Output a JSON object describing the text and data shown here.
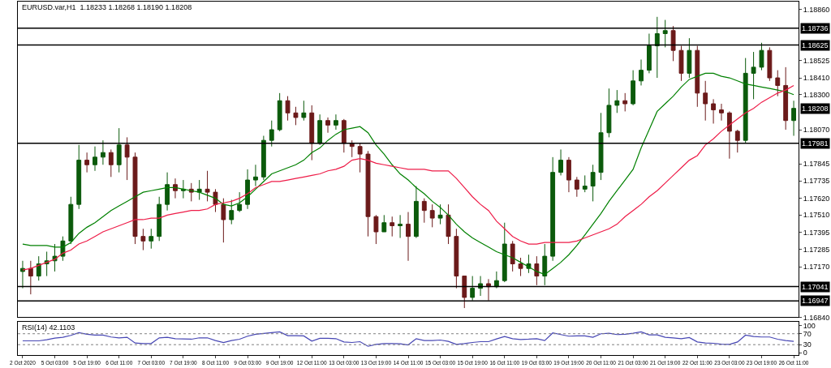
{
  "chart_data": [
    {
      "type": "candlestick",
      "title": "EURUSD.var,H1  1.18233 1.18268 1.18190 1.18208",
      "categories": [
        null,
        null,
        null,
        null,
        null,
        null,
        null,
        null,
        null,
        null,
        null,
        null,
        null,
        null,
        null,
        null,
        null,
        null,
        null,
        null,
        null,
        null,
        null,
        null,
        null,
        null,
        null,
        null,
        null,
        null,
        null,
        null,
        null,
        null,
        null,
        null,
        null,
        null,
        null,
        null,
        null,
        null,
        null,
        null,
        null,
        null,
        null,
        null,
        null,
        null,
        null,
        null,
        null,
        null,
        null,
        null,
        null,
        null,
        null,
        null,
        null,
        null,
        null,
        null,
        null,
        null,
        null,
        null,
        null,
        null,
        null,
        null,
        null,
        null,
        null,
        null,
        null,
        null,
        null,
        null,
        null,
        null,
        null,
        null,
        null,
        null,
        null,
        null,
        null,
        null,
        null,
        null,
        null,
        null,
        null,
        null,
        null
      ],
      "ohlc": [
        [
          1.1714,
          1.1721,
          1.1703,
          1.1716
        ],
        [
          1.1716,
          1.1721,
          1.1699,
          1.1711
        ],
        [
          1.1711,
          1.1724,
          1.1708,
          1.1719
        ],
        [
          1.1719,
          1.1727,
          1.1711,
          1.1721
        ],
        [
          1.1721,
          1.1732,
          1.1714,
          1.1724
        ],
        [
          1.1724,
          1.1737,
          1.1721,
          1.1734
        ],
        [
          1.1734,
          1.1763,
          1.1732,
          1.1758
        ],
        [
          1.1758,
          1.1797,
          1.1755,
          1.1787
        ],
        [
          1.1787,
          1.1792,
          1.1779,
          1.1784
        ],
        [
          1.1784,
          1.1796,
          1.178,
          1.1789
        ],
        [
          1.1789,
          1.18,
          1.1784,
          1.1792
        ],
        [
          1.1792,
          1.1794,
          1.1776,
          1.1784
        ],
        [
          1.1784,
          1.1808,
          1.1779,
          1.1797
        ],
        [
          1.1797,
          1.1802,
          1.1774,
          1.1789
        ],
        [
          1.1789,
          1.1792,
          1.1732,
          1.1737
        ],
        [
          1.1737,
          1.1742,
          1.1728,
          1.1734
        ],
        [
          1.1734,
          1.1742,
          1.1729,
          1.1737
        ],
        [
          1.1737,
          1.1763,
          1.1734,
          1.1758
        ],
        [
          1.1758,
          1.1779,
          1.1754,
          1.1771
        ],
        [
          1.1771,
          1.1775,
          1.1762,
          1.1767
        ],
        [
          1.1767,
          1.1774,
          1.1762,
          1.1768
        ],
        [
          1.1768,
          1.1772,
          1.176,
          1.1766
        ],
        [
          1.1766,
          1.1774,
          1.1761,
          1.1768
        ],
        [
          1.1768,
          1.178,
          1.176,
          1.1766
        ],
        [
          1.1766,
          1.1768,
          1.1753,
          1.1758
        ],
        [
          1.1758,
          1.1762,
          1.1733,
          1.1748
        ],
        [
          1.1748,
          1.1761,
          1.1745,
          1.1754
        ],
        [
          1.1754,
          1.1766,
          1.1753,
          1.1758
        ],
        [
          1.1758,
          1.1781,
          1.1755,
          1.1774
        ],
        [
          1.1774,
          1.1784,
          1.177,
          1.1776
        ],
        [
          1.1776,
          1.1803,
          1.1774,
          1.18
        ],
        [
          1.18,
          1.1813,
          1.1796,
          1.1807
        ],
        [
          1.1807,
          1.1831,
          1.1806,
          1.1826
        ],
        [
          1.1826,
          1.1829,
          1.1813,
          1.1818
        ],
        [
          1.1818,
          1.1822,
          1.181,
          1.1815
        ],
        [
          1.1815,
          1.1826,
          1.1813,
          1.1818
        ],
        [
          1.1818,
          1.1823,
          1.1787,
          1.1798
        ],
        [
          1.1798,
          1.1817,
          1.1797,
          1.1813
        ],
        [
          1.1813,
          1.1815,
          1.1805,
          1.181
        ],
        [
          1.181,
          1.1817,
          1.1807,
          1.1813
        ],
        [
          1.1813,
          1.1814,
          1.1792,
          1.1798
        ],
        [
          1.1798,
          1.18,
          1.1789,
          1.1796
        ],
        [
          1.1796,
          1.1798,
          1.1779,
          1.1791
        ],
        [
          1.1791,
          1.1793,
          1.1737,
          1.175
        ],
        [
          1.175,
          1.1751,
          1.1732,
          1.174
        ],
        [
          1.174,
          1.1751,
          1.174,
          1.1746
        ],
        [
          1.1746,
          1.175,
          1.1737,
          1.1744
        ],
        [
          1.1744,
          1.1751,
          1.1736,
          1.1745
        ],
        [
          1.1745,
          1.1753,
          1.1721,
          1.1737
        ],
        [
          1.1737,
          1.177,
          1.1736,
          1.176
        ],
        [
          1.176,
          1.1762,
          1.1746,
          1.1754
        ],
        [
          1.1754,
          1.1758,
          1.1743,
          1.1749
        ],
        [
          1.1749,
          1.1758,
          1.1745,
          1.1751
        ],
        [
          1.1751,
          1.1758,
          1.1732,
          1.1737
        ],
        [
          1.1737,
          1.1742,
          1.1703,
          1.1711
        ],
        [
          1.1711,
          1.1711,
          1.169,
          1.1697
        ],
        [
          1.1697,
          1.1711,
          1.1695,
          1.1703
        ],
        [
          1.1703,
          1.1711,
          1.1698,
          1.1706
        ],
        [
          1.1706,
          1.1709,
          1.1695,
          1.1704
        ],
        [
          1.1704,
          1.1714,
          1.1703,
          1.1708
        ],
        [
          1.1708,
          1.1746,
          1.1707,
          1.1732
        ],
        [
          1.1732,
          1.1734,
          1.1714,
          1.1719
        ],
        [
          1.1719,
          1.1723,
          1.1711,
          1.1716
        ],
        [
          1.1716,
          1.1725,
          1.1713,
          1.1719
        ],
        [
          1.1719,
          1.1724,
          1.1705,
          1.1711
        ],
        [
          1.1711,
          1.1732,
          1.1705,
          1.1724
        ],
        [
          1.1724,
          1.1789,
          1.1721,
          1.1779
        ],
        [
          1.1779,
          1.1794,
          1.1777,
          1.1787
        ],
        [
          1.1787,
          1.1789,
          1.1766,
          1.1774
        ],
        [
          1.1774,
          1.1776,
          1.1763,
          1.1768
        ],
        [
          1.1768,
          1.1777,
          1.1766,
          1.177
        ],
        [
          1.177,
          1.1784,
          1.176,
          1.1779
        ],
        [
          1.1779,
          1.1818,
          1.1774,
          1.1805
        ],
        [
          1.1805,
          1.1834,
          1.1802,
          1.1823
        ],
        [
          1.1823,
          1.1833,
          1.1818,
          1.1826
        ],
        [
          1.1826,
          1.1831,
          1.1819,
          1.1824
        ],
        [
          1.1824,
          1.1846,
          1.1823,
          1.1839
        ],
        [
          1.1839,
          1.1853,
          1.1836,
          1.1846
        ],
        [
          1.1846,
          1.187,
          1.1844,
          1.1862
        ],
        [
          1.1862,
          1.1881,
          1.1841,
          1.187
        ],
        [
          1.187,
          1.1879,
          1.1861,
          1.1872
        ],
        [
          1.1872,
          1.1875,
          1.1852,
          1.1859
        ],
        [
          1.1859,
          1.1862,
          1.1839,
          1.1844
        ],
        [
          1.1844,
          1.1867,
          1.1841,
          1.1859
        ],
        [
          1.1859,
          1.1862,
          1.1822,
          1.1831
        ],
        [
          1.1831,
          1.1839,
          1.1813,
          1.1824
        ],
        [
          1.1824,
          1.1827,
          1.1811,
          1.182
        ],
        [
          1.182,
          1.1824,
          1.1813,
          1.1818
        ],
        [
          1.1818,
          1.1819,
          1.1788,
          1.1806
        ],
        [
          1.1806,
          1.1807,
          1.1792,
          1.18
        ],
        [
          1.18,
          1.1854,
          1.1798,
          1.1844
        ],
        [
          1.1844,
          1.1858,
          1.1827,
          1.1848
        ],
        [
          1.1848,
          1.1864,
          1.1846,
          1.1859
        ],
        [
          1.1859,
          1.1861,
          1.1839,
          1.1841
        ],
        [
          1.1841,
          1.1846,
          1.1829,
          1.1836
        ],
        [
          1.1836,
          1.1848,
          1.1807,
          1.1813
        ],
        [
          1.1813,
          1.1826,
          1.1803,
          1.1821
        ]
      ],
      "colors": [
        "#0b5a0b",
        "#6b1a1a",
        "#0b5a0b",
        "#0b5a0b",
        "#0b5a0b",
        "#0b5a0b",
        "#0b5a0b",
        "#0b5a0b",
        "#6b1a1a",
        "#0b5a0b",
        "#0b5a0b",
        "#6b1a1a",
        "#0b5a0b",
        "#6b1a1a",
        "#6b1a1a",
        "#6b1a1a",
        "#0b5a0b",
        "#0b5a0b",
        "#0b5a0b",
        "#6b1a1a",
        "#0b5a0b",
        "#6b1a1a",
        "#0b5a0b",
        "#6b1a1a",
        "#6b1a1a",
        "#6b1a1a",
        "#0b5a0b",
        "#0b5a0b",
        "#0b5a0b",
        "#0b5a0b",
        "#0b5a0b",
        "#0b5a0b",
        "#0b5a0b",
        "#6b1a1a",
        "#6b1a1a",
        "#0b5a0b",
        "#6b1a1a",
        "#0b5a0b",
        "#6b1a1a",
        "#0b5a0b",
        "#6b1a1a",
        "#6b1a1a",
        "#6b1a1a",
        "#6b1a1a",
        "#6b1a1a",
        "#0b5a0b",
        "#6b1a1a",
        "#0b5a0b",
        "#6b1a1a",
        "#0b5a0b",
        "#6b1a1a",
        "#6b1a1a",
        "#0b5a0b",
        "#6b1a1a",
        "#6b1a1a",
        "#6b1a1a",
        "#0b5a0b",
        "#0b5a0b",
        "#6b1a1a",
        "#0b5a0b",
        "#0b5a0b",
        "#6b1a1a",
        "#6b1a1a",
        "#0b5a0b",
        "#6b1a1a",
        "#0b5a0b",
        "#0b5a0b",
        "#0b5a0b",
        "#6b1a1a",
        "#6b1a1a",
        "#0b5a0b",
        "#0b5a0b",
        "#0b5a0b",
        "#0b5a0b",
        "#0b5a0b",
        "#6b1a1a",
        "#0b5a0b",
        "#0b5a0b",
        "#0b5a0b",
        "#0b5a0b",
        "#0b5a0b",
        "#6b1a1a",
        "#6b1a1a",
        "#0b5a0b",
        "#6b1a1a",
        "#6b1a1a",
        "#6b1a1a",
        "#6b1a1a",
        "#6b1a1a",
        "#6b1a1a",
        "#0b5a0b",
        "#0b5a0b",
        "#0b5a0b",
        "#6b1a1a",
        "#6b1a1a",
        "#6b1a1a",
        "#0b5a0b"
      ],
      "series": [
        {
          "type": "line",
          "color": "#008000",
          "values": [
            1.1732,
            1.1731,
            1.1731,
            1.1731,
            1.173,
            1.173,
            1.1733,
            1.1739,
            1.1743,
            1.1746,
            1.175,
            1.1754,
            1.1757,
            1.176,
            1.1763,
            1.1766,
            1.1767,
            1.1768,
            1.1769,
            1.1769,
            1.1768,
            1.1767,
            1.1766,
            1.1764,
            1.1762,
            1.1758,
            1.1757,
            1.1759,
            1.1763,
            1.1768,
            1.1773,
            1.1778,
            1.178,
            1.1782,
            1.1784,
            1.1787,
            1.1792,
            1.1795,
            1.18,
            1.1804,
            1.1807,
            1.1808,
            1.1809,
            1.1805,
            1.1797,
            1.1791,
            1.1784,
            1.1778,
            1.1774,
            1.1769,
            1.1765,
            1.176,
            1.1756,
            1.1751,
            1.1745,
            1.174,
            1.1736,
            1.1733,
            1.173,
            1.1727,
            1.1725,
            1.1723,
            1.172,
            1.1717,
            1.1714,
            1.1712,
            1.1716,
            1.172,
            1.1725,
            1.1731,
            1.1738,
            1.1745,
            1.1752,
            1.176,
            1.1767,
            1.1774,
            1.1781,
            1.1795,
            1.1807,
            1.1819,
            1.1824,
            1.1829,
            1.1835,
            1.184,
            1.1842,
            1.1844,
            1.1844,
            1.1842,
            1.1841,
            1.1839,
            1.1837,
            1.1836,
            1.1835,
            1.1834,
            1.1833,
            1.1832,
            1.183
          ]
        },
        {
          "type": "line",
          "color": "#ee1c48",
          "values": [
            1.1715,
            1.1716,
            1.1718,
            1.172,
            1.1722,
            1.1726,
            1.1728,
            1.1732,
            1.1734,
            1.1737,
            1.174,
            1.1742,
            1.1744,
            1.1746,
            1.1748,
            1.1748,
            1.1749,
            1.1749,
            1.1751,
            1.1752,
            1.1753,
            1.1754,
            1.1754,
            1.1755,
            1.1758,
            1.1759,
            1.176,
            1.1762,
            1.1765,
            1.1769,
            1.1771,
            1.1773,
            1.1773,
            1.1774,
            1.1775,
            1.1776,
            1.1777,
            1.1778,
            1.178,
            1.1781,
            1.1783,
            1.1787,
            1.1788,
            1.1787,
            1.1785,
            1.1784,
            1.1783,
            1.1782,
            1.1781,
            1.1781,
            1.1781,
            1.178,
            1.178,
            1.178,
            1.1775,
            1.1769,
            1.1763,
            1.1758,
            1.1754,
            1.1747,
            1.1742,
            1.1737,
            1.1734,
            1.1732,
            1.1732,
            1.1733,
            1.1733,
            1.1733,
            1.1733,
            1.1734,
            1.1736,
            1.1738,
            1.174,
            1.1742,
            1.1745,
            1.175,
            1.1754,
            1.1758,
            1.1763,
            1.1767,
            1.1772,
            1.1777,
            1.1782,
            1.1787,
            1.179,
            1.1797,
            1.1801,
            1.1806,
            1.181,
            1.1814,
            1.1818,
            1.1821,
            1.1825,
            1.1828,
            1.1831,
            1.1833,
            1.1836
          ]
        }
      ],
      "ylim": [
        1.1684,
        1.1891
      ],
      "yticks": [
        {
          "value": 1.1886,
          "label": "1.18860"
        },
        {
          "value": 1.18525,
          "label": "1.18525"
        },
        {
          "value": 1.1841,
          "label": "1.18410"
        },
        {
          "value": 1.183,
          "label": "1.18300"
        },
        {
          "value": 1.1807,
          "label": "1.18070"
        },
        {
          "value": 1.17845,
          "label": "1.17845"
        },
        {
          "value": 1.17735,
          "label": "1.17735"
        },
        {
          "value": 1.1762,
          "label": "1.17620"
        },
        {
          "value": 1.1751,
          "label": "1.17510"
        },
        {
          "value": 1.17395,
          "label": "1.17395"
        },
        {
          "value": 1.17285,
          "label": "1.17285"
        },
        {
          "value": 1.1717,
          "label": "1.17170"
        },
        {
          "value": 1.1684,
          "label": "1.16840"
        }
      ],
      "ref_lines": [
        {
          "axis": "y",
          "value": 1.18736,
          "label": "1.18736",
          "color": "#000000"
        },
        {
          "axis": "y",
          "value": 1.18625,
          "label": "1.18625",
          "color": "#000000"
        },
        {
          "axis": "y",
          "value": 1.17981,
          "label": "1.17981",
          "color": "#000000"
        },
        {
          "axis": "y",
          "value": 1.17041,
          "label": "1.17041",
          "color": "#000000"
        },
        {
          "axis": "y",
          "value": 1.16947,
          "label": "1.16947",
          "color": "#000000"
        }
      ],
      "annotations": [
        {
          "text": "1.18208",
          "y": 1.18208
        }
      ],
      "tick_labels": "y"
    },
    {
      "type": "line",
      "title": "RSI(14) 42.1103",
      "categories": [
        "2 Oct 2020",
        null,
        null,
        null,
        "5 Oct 03:00",
        null,
        null,
        null,
        "5 Oct 19:00",
        null,
        null,
        null,
        "6 Oct 11:00",
        null,
        null,
        null,
        "7 Oct 03:00",
        null,
        null,
        null,
        "7 Oct 19:00",
        null,
        null,
        null,
        "8 Oct 11:00",
        null,
        null,
        null,
        "9 Oct 03:00",
        null,
        null,
        null,
        "9 Oct 19:00",
        null,
        null,
        null,
        "12 Oct 11:00",
        null,
        null,
        null,
        "13 Oct 03:00",
        null,
        null,
        null,
        "13 Oct 19:00",
        null,
        null,
        null,
        "14 Oct 11:00",
        null,
        null,
        null,
        "15 Oct 03:00",
        null,
        null,
        null,
        "15 Oct 19:00",
        null,
        null,
        null,
        "16 Oct 11:00",
        null,
        null,
        null,
        "19 Oct 03:00",
        null,
        null,
        null,
        "19 Oct 19:00",
        null,
        null,
        null,
        "20 Oct 11:00",
        null,
        null,
        null,
        "21 Oct 03:00",
        null,
        null,
        null,
        "21 Oct 19:00",
        null,
        null,
        null,
        "22 Oct 11:00",
        null,
        null,
        null,
        "23 Oct 03:00",
        null,
        null,
        null,
        "23 Oct 19:00",
        null,
        null,
        null,
        "26 Oct 11:00"
      ],
      "series": [
        {
          "color": "#4646b4",
          "values": [
            44,
            44,
            44,
            48,
            54,
            57,
            64,
            74,
            68,
            65,
            65,
            58,
            55,
            57,
            36,
            34,
            34,
            55,
            57,
            52,
            51,
            50,
            55,
            55,
            45,
            38,
            45,
            50,
            61,
            68,
            71,
            74,
            77,
            63,
            63,
            62,
            43,
            53,
            53,
            52,
            40,
            38,
            41,
            24,
            31,
            34,
            34,
            33,
            29,
            52,
            45,
            45,
            47,
            42,
            31,
            34,
            38,
            41,
            41,
            51,
            60,
            52,
            49,
            50,
            52,
            45,
            73,
            67,
            61,
            62,
            62,
            57,
            70,
            72,
            67,
            68,
            72,
            77,
            66,
            66,
            57,
            55,
            52,
            56,
            40,
            36,
            35,
            32,
            31,
            40,
            65,
            60,
            58,
            58,
            50,
            45,
            42
          ]
        }
      ],
      "ylim": [
        -8,
        115
      ],
      "yticks": [
        0,
        30,
        70,
        100
      ],
      "ref_lines": [
        {
          "axis": "y",
          "value": 70,
          "color": "#808080",
          "line_style": "dotted"
        },
        {
          "axis": "y",
          "value": 30,
          "color": "#808080",
          "line_style": "dotted"
        }
      ]
    }
  ]
}
